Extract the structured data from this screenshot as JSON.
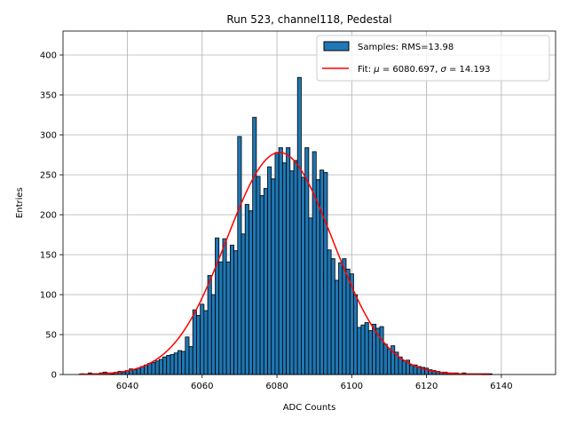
{
  "chart_data": {
    "type": "bar",
    "title": "Run 523, channel118, Pedestal",
    "xlabel": "ADC Counts",
    "ylabel": "Entries",
    "xlim": [
      6022.8,
      6154.5
    ],
    "ylim": [
      0,
      430
    ],
    "xticks": [
      6040,
      6060,
      6080,
      6100,
      6120,
      6140
    ],
    "yticks": [
      0,
      50,
      100,
      150,
      200,
      250,
      300,
      350,
      400
    ],
    "grid": true,
    "legend_position": "top-right",
    "bin_width": 1,
    "colors": {
      "bar": "#1f77b4",
      "fit": "#ff0000",
      "edge": "#000000",
      "grid": "#b0b0b0"
    },
    "histogram": {
      "name": "Samples: RMS=13.98",
      "x": [
        6028,
        6030,
        6031,
        6032,
        6033,
        6034,
        6035,
        6036,
        6037,
        6038,
        6039,
        6040,
        6041,
        6042,
        6043,
        6044,
        6045,
        6046,
        6047,
        6048,
        6049,
        6050,
        6051,
        6052,
        6053,
        6054,
        6055,
        6056,
        6057,
        6058,
        6059,
        6060,
        6061,
        6062,
        6063,
        6064,
        6065,
        6066,
        6067,
        6068,
        6069,
        6070,
        6071,
        6072,
        6073,
        6074,
        6075,
        6076,
        6077,
        6078,
        6079,
        6080,
        6081,
        6082,
        6083,
        6084,
        6085,
        6086,
        6087,
        6088,
        6089,
        6090,
        6091,
        6092,
        6093,
        6094,
        6095,
        6096,
        6097,
        6098,
        6099,
        6100,
        6101,
        6102,
        6103,
        6104,
        6105,
        6106,
        6107,
        6108,
        6109,
        6110,
        6111,
        6112,
        6113,
        6114,
        6115,
        6116,
        6117,
        6118,
        6119,
        6120,
        6121,
        6122,
        6123,
        6124,
        6125,
        6126,
        6127,
        6128,
        6129,
        6130,
        6131,
        6132,
        6133,
        6134,
        6135,
        6136,
        6137
      ],
      "values": [
        1,
        2,
        1,
        1,
        2,
        3,
        2,
        1,
        3,
        4,
        3,
        5,
        7,
        6,
        8,
        10,
        12,
        14,
        15,
        17,
        19,
        22,
        24,
        25,
        27,
        30,
        29,
        47,
        35,
        81,
        74,
        88,
        80,
        124,
        100,
        171,
        141,
        170,
        141,
        162,
        155,
        298,
        176,
        213,
        205,
        322,
        248,
        224,
        233,
        260,
        245,
        278,
        284,
        265,
        284,
        255,
        268,
        372,
        247,
        284,
        196,
        279,
        244,
        256,
        253,
        156,
        145,
        118,
        140,
        145,
        132,
        126,
        100,
        59,
        62,
        65,
        55,
        63,
        58,
        60,
        38,
        32,
        36,
        28,
        22,
        17,
        18,
        12,
        12,
        10,
        9,
        8,
        6,
        5,
        4,
        3,
        3,
        2,
        2,
        2,
        1,
        2,
        1,
        1,
        1,
        1,
        1,
        1,
        1
      ]
    },
    "fit": {
      "name": "Fit: μ = 6080.697, σ = 14.193",
      "type": "gaussian",
      "mu": 6080.697,
      "sigma": 14.193,
      "amplitude": 278,
      "x_range": [
        6027,
        6137
      ]
    }
  },
  "labels": {
    "title": "Run 523, channel118, Pedestal",
    "xlabel": "ADC Counts",
    "ylabel": "Entries",
    "legend_hist": "Samples: RMS=13.98",
    "legend_fit_prefix": "Fit: ",
    "legend_fit_mu": "μ",
    "legend_fit_mid": " = 6080.697, ",
    "legend_fit_sigma": "σ",
    "legend_fit_suffix": " = 14.193"
  }
}
